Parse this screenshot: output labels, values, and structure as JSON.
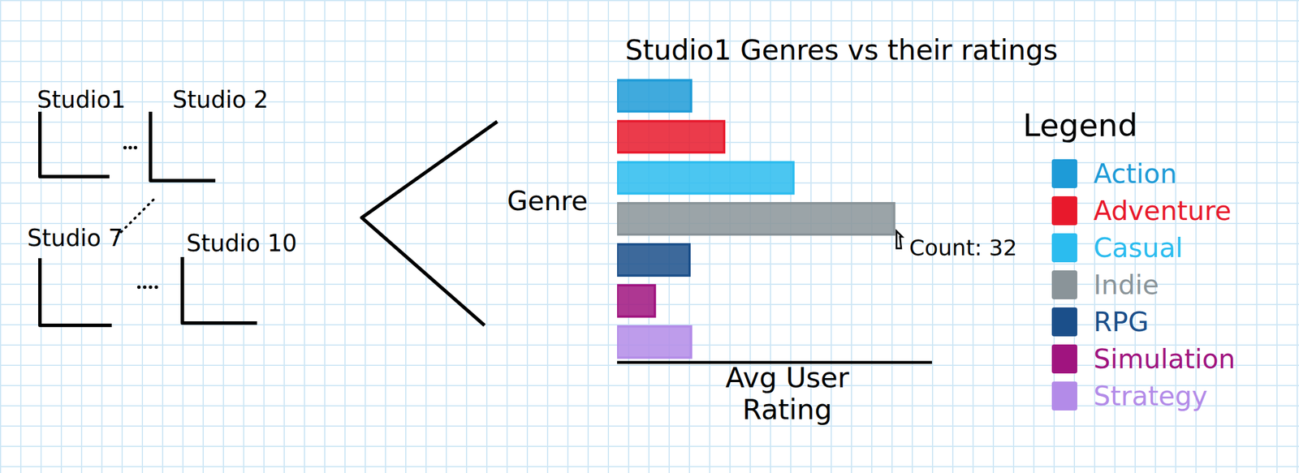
{
  "chart_data": {
    "type": "bar",
    "title": "Studio1 Genres vs their ratings",
    "orientation": "horizontal",
    "x_label": "Avg User Rating",
    "y_label": "Genre",
    "categories": [
      "Action",
      "Adventure",
      "Casual",
      "Indie",
      "RPG",
      "Simulation",
      "Strategy"
    ],
    "values": [
      2.35,
      3.4,
      5.6,
      8.8,
      2.3,
      1.2,
      2.35
    ],
    "colors": [
      "#1e9bd7",
      "#e8192c",
      "#2bbcef",
      "#8a9499",
      "#1b4f8a",
      "#a0147f",
      "#b38be8"
    ],
    "xlim": [
      0,
      10
    ],
    "xticks": [],
    "tick_labels": false,
    "legend": "right",
    "legend_title": "Legend",
    "annotations": [
      {
        "category": "Indie",
        "text": "Count: 32"
      }
    ]
  },
  "small_multiples": {
    "panels": [
      "Studio1",
      "Studio 2",
      "Studio 7",
      "Studio 10"
    ]
  }
}
